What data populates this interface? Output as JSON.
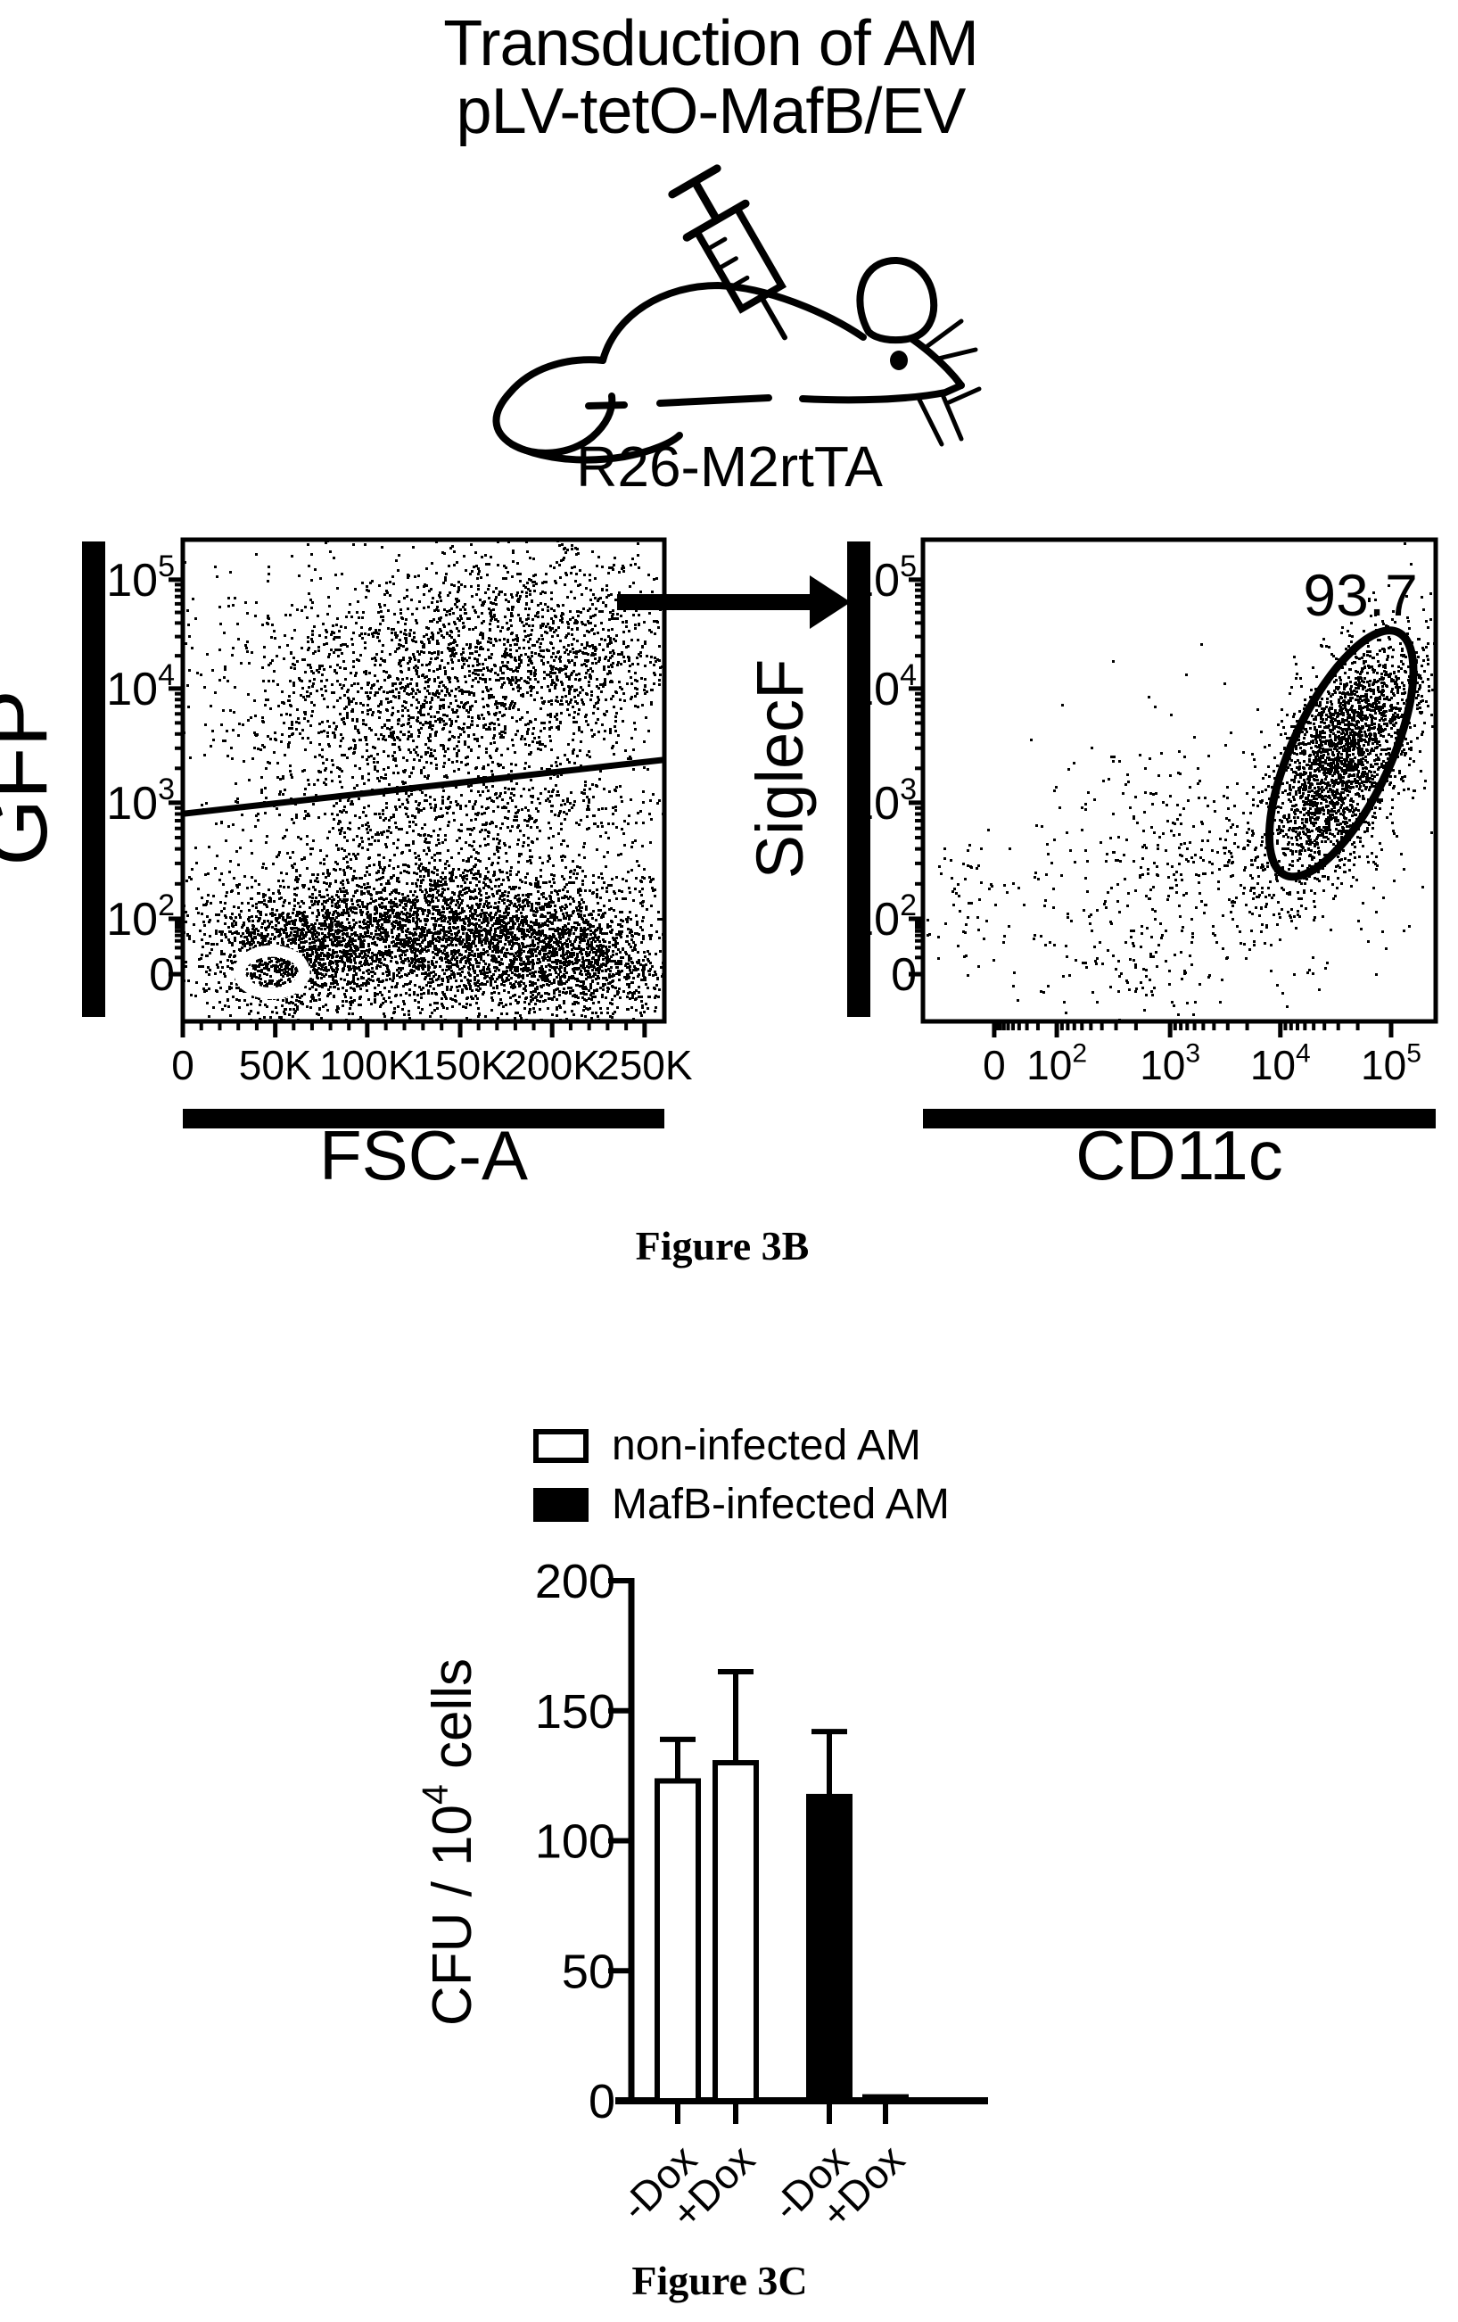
{
  "figure": {
    "title_line1": "Transduction of AM",
    "title_line2": "pLV-tetO-MafB/EV",
    "mouse_strain_label": "R26-M2rtTA",
    "panel_b_caption": "Figure 3B",
    "panel_c_caption": "Figure 3C",
    "icons": [
      "syringe-icon",
      "mouse-icon",
      "gating-arrow"
    ],
    "colors": {
      "ink": "#000000",
      "paper": "#ffffff"
    }
  },
  "chart_data": [
    {
      "type": "scatter",
      "subtype": "flow-cytometry-dot-plot",
      "name": "gfp-vs-fsc",
      "xlabel": "FSC-A",
      "ylabel": "GFP",
      "x_scale": "linear",
      "y_scale": "biexponential",
      "x_ticks": [
        {
          "label": "0",
          "f": 0.0
        },
        {
          "label": "50K",
          "f": 0.192
        },
        {
          "label": "100K",
          "f": 0.383
        },
        {
          "label": "150K",
          "f": 0.576
        },
        {
          "label": "200K",
          "f": 0.767
        },
        {
          "label": "250K",
          "f": 0.959
        }
      ],
      "x_minor": "linear",
      "y_ticks": [
        {
          "label": "10^5",
          "f": 0.083
        },
        {
          "label": "10^4",
          "f": 0.309
        },
        {
          "label": "10^3",
          "f": 0.546
        },
        {
          "label": "10^2",
          "f": 0.787
        },
        {
          "label": "0",
          "f": 0.902
        }
      ],
      "y_minor": "log",
      "gate_line": {
        "x1": 0.0,
        "y1": 0.569,
        "x2": 1.0,
        "y2": 0.457
      },
      "contour_ring": {
        "cx": 0.185,
        "cy": 0.898,
        "rx": 0.067,
        "ry": 0.044
      },
      "populations": [
        {
          "name": "gfp-pos-left",
          "cx": 0.417,
          "cy": 0.343,
          "sx": 0.17,
          "sy": 0.13,
          "n": 1100
        },
        {
          "name": "gfp-pos-right",
          "cx": 0.75,
          "cy": 0.231,
          "sx": 0.16,
          "sy": 0.12,
          "n": 1300
        },
        {
          "name": "gfp-pos-halo",
          "cx": 0.55,
          "cy": 0.28,
          "sx": 0.3,
          "sy": 0.17,
          "n": 450
        },
        {
          "name": "mid-band",
          "cx": 0.65,
          "cy": 0.565,
          "sx": 0.22,
          "sy": 0.05,
          "n": 450
        },
        {
          "name": "gfp-neg-core",
          "cx": 0.509,
          "cy": 0.809,
          "sx": 0.23,
          "sy": 0.083,
          "n": 3800
        },
        {
          "name": "gfp-neg-right",
          "cx": 0.8,
          "cy": 0.86,
          "sx": 0.1,
          "sy": 0.055,
          "n": 700
        },
        {
          "name": "gfp-neg-left",
          "cx": 0.22,
          "cy": 0.875,
          "sx": 0.085,
          "sy": 0.06,
          "n": 800
        },
        {
          "name": "spill-right",
          "cx": 0.85,
          "cy": 0.93,
          "sx": 0.12,
          "sy": 0.05,
          "n": 250
        }
      ]
    },
    {
      "type": "scatter",
      "subtype": "flow-cytometry-dot-plot",
      "name": "siglecf-vs-cd11c",
      "xlabel": "CD11c",
      "ylabel": "SiglecF",
      "x_scale": "biexponential",
      "y_scale": "biexponential",
      "x_ticks": [
        {
          "label": "0",
          "f": 0.139
        },
        {
          "label": "10^2",
          "f": 0.261
        },
        {
          "label": "10^3",
          "f": 0.482
        },
        {
          "label": "10^4",
          "f": 0.697
        },
        {
          "label": "10^5",
          "f": 0.913
        }
      ],
      "x_minor": "log",
      "y_ticks": [
        {
          "label": "10^5",
          "f": 0.083
        },
        {
          "label": "10^4",
          "f": 0.309
        },
        {
          "label": "10^3",
          "f": 0.546
        },
        {
          "label": "10^2",
          "f": 0.787
        },
        {
          "label": "0",
          "f": 0.902
        }
      ],
      "y_minor": "log",
      "gate_label": "93.7",
      "gate_label_pos": {
        "x": 0.965,
        "y": 0.157
      },
      "gate_ellipse": {
        "cx": 0.816,
        "cy": 0.444,
        "rx": 0.261,
        "ry": 0.096,
        "angle": -65
      },
      "populations": [
        {
          "name": "am-gate-core",
          "cx": 0.816,
          "cy": 0.444,
          "sx": 0.13,
          "sy": 0.057,
          "n": 2400,
          "rot": -65
        },
        {
          "name": "trail",
          "cx": 0.513,
          "cy": 0.639,
          "sx": 0.13,
          "sy": 0.12,
          "n": 240
        },
        {
          "name": "halo",
          "cx": 0.67,
          "cy": 0.694,
          "sx": 0.191,
          "sy": 0.13,
          "n": 160
        },
        {
          "name": "low-left",
          "cx": 0.113,
          "cy": 0.741,
          "sx": 0.073,
          "sy": 0.074,
          "n": 80
        },
        {
          "name": "bottom-mid",
          "cx": 0.435,
          "cy": 0.88,
          "sx": 0.122,
          "sy": 0.078,
          "n": 120
        }
      ]
    },
    {
      "type": "bar",
      "name": "cfu-bar-chart",
      "title": "",
      "xlabel": "",
      "ylabel": "CFU / 10^4 cells",
      "ylim": [
        0,
        200
      ],
      "yticks": [
        0,
        50,
        100,
        150,
        200
      ],
      "grid": false,
      "legend_position": "top",
      "legend": [
        {
          "label": "non-infected AM",
          "fill": "#ffffff"
        },
        {
          "label": "MafB-infected AM",
          "fill": "#000000"
        }
      ],
      "categories": [
        "-Dox",
        "+Dox",
        "-Dox",
        "+Dox"
      ],
      "bars": [
        {
          "category": "-Dox",
          "series": "non-infected AM",
          "value": 123,
          "error_plus": 16,
          "fill": "#ffffff"
        },
        {
          "category": "+Dox",
          "series": "non-infected AM",
          "value": 130,
          "error_plus": 35,
          "fill": "#ffffff"
        },
        {
          "category": "-Dox",
          "series": "MafB-infected AM",
          "value": 117,
          "error_plus": 25,
          "fill": "#000000"
        },
        {
          "category": "+Dox",
          "series": "MafB-infected AM",
          "value": 1.5,
          "error_plus": 0,
          "fill": "#000000"
        }
      ]
    }
  ]
}
